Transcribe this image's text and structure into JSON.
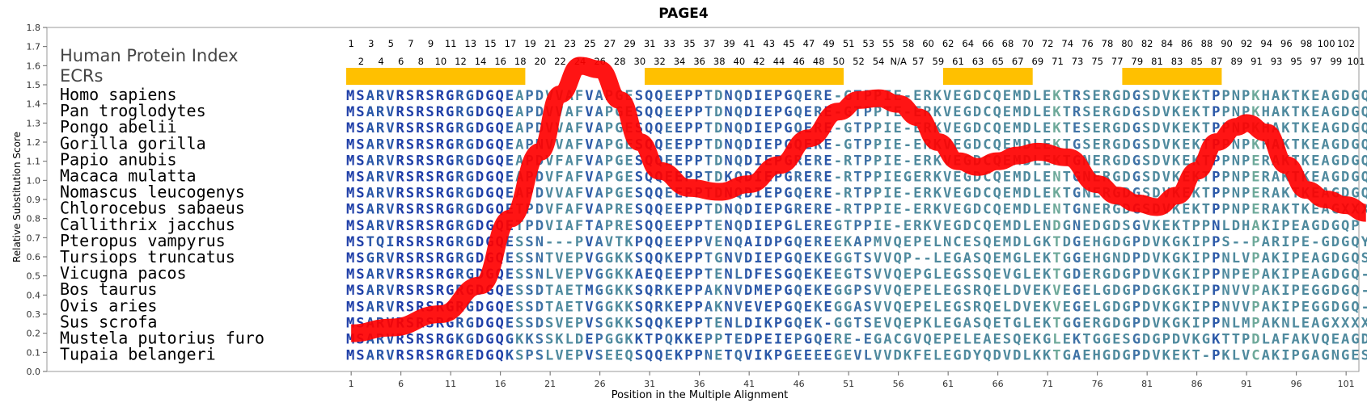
{
  "chart_data": {
    "type": "line",
    "title": "PAGE4",
    "xlabel": "Position in the Multiple Alignment",
    "ylabel": "Relative Substitution Score",
    "ylim": [
      0.0,
      1.8
    ],
    "yticks": [
      "0.0",
      "0.1",
      "0.2",
      "0.3",
      "0.4",
      "0.5",
      "0.6",
      "0.7",
      "0.8",
      "0.9",
      "1.0",
      "1.1",
      "1.2",
      "1.3",
      "1.4",
      "1.5",
      "1.6",
      "1.7",
      "1.8"
    ],
    "xrange": [
      1,
      104
    ],
    "xticks": [
      "1",
      "6",
      "11",
      "16",
      "21",
      "26",
      "31",
      "36",
      "41",
      "46",
      "51",
      "56",
      "61",
      "66",
      "71",
      "76",
      "81",
      "86",
      "91",
      "96",
      "101"
    ],
    "hpi_label": "Human Protein Index",
    "ecr_label": "ECRs",
    "hpi_top": [
      "1",
      "3",
      "5",
      "7",
      "9",
      "11",
      "13",
      "15",
      "17",
      "19",
      "21",
      "23",
      "25",
      "27",
      "29",
      "31",
      "33",
      "35",
      "37",
      "39",
      "41",
      "43",
      "45",
      "47",
      "49",
      "51",
      "53",
      "55",
      "58",
      "60",
      "62",
      "64",
      "66",
      "68",
      "70",
      "72",
      "74",
      "76",
      "78",
      "80",
      "82",
      "84",
      "86",
      "88",
      "90",
      "92",
      "94",
      "96",
      "98",
      "100",
      "102"
    ],
    "hpi_bottom": [
      "2",
      "4",
      "6",
      "8",
      "10",
      "12",
      "14",
      "16",
      "18",
      "20",
      "22",
      "24",
      "26",
      "28",
      "30",
      "32",
      "34",
      "36",
      "38",
      "40",
      "42",
      "44",
      "46",
      "48",
      "50",
      "52",
      "54",
      "N/A",
      "57",
      "59",
      "61",
      "63",
      "65",
      "67",
      "69",
      "71",
      "73",
      "75",
      "77",
      "79",
      "81",
      "83",
      "85",
      "87",
      "89",
      "91",
      "93",
      "95",
      "97",
      "99",
      "101"
    ],
    "ecr_ranges": [
      [
        1,
        18
      ],
      [
        31,
        50
      ],
      [
        61,
        69
      ],
      [
        79,
        88
      ]
    ],
    "series": [
      {
        "x": [
          1,
          5,
          10,
          14,
          17,
          20,
          22,
          24,
          26,
          28,
          30,
          32,
          35,
          38,
          41,
          44,
          47,
          50,
          52,
          54,
          56,
          58,
          60,
          62,
          64,
          66,
          68,
          70,
          73,
          76,
          78,
          80,
          82,
          84,
          86,
          88,
          90,
          91,
          93,
          95,
          97,
          99,
          101,
          103
        ],
        "y": [
          0.2,
          0.23,
          0.3,
          0.45,
          0.8,
          1.15,
          1.45,
          1.6,
          1.58,
          1.42,
          1.2,
          1.05,
          0.96,
          0.94,
          0.98,
          1.08,
          1.22,
          1.36,
          1.42,
          1.43,
          1.4,
          1.33,
          1.2,
          1.1,
          1.07,
          1.1,
          1.13,
          1.15,
          1.12,
          0.98,
          0.92,
          0.88,
          0.86,
          0.92,
          1.05,
          1.2,
          1.28,
          1.3,
          1.25,
          1.08,
          0.95,
          0.9,
          0.87,
          0.83
        ]
      }
    ],
    "line_color": "#ff0000",
    "ecr_color": "#ffc000"
  },
  "alignment": {
    "rows": [
      {
        "species": "Homo sapiens",
        "seq": "MSARVRSRSRGRGDGQEAPDVVAFVAPGESQQEEPPTDNQDIEPGQERE-GTPPIE-ERKVEGDCQEMDLEKTRSERGDGSDVKEKTPPNPKHAKTKEAGDGQP"
      },
      {
        "species": "Pan troglodytes",
        "seq": "MSARVRSRSRGRGDGQEAPDVVAFVAPGESQQEEPPTDNQDIEPGQERE-GTPPTE-ERKVEGDCQEMDLEKTRSERGDGSDVKEKTPPNPKHAKTKEAGDGQP"
      },
      {
        "species": "Pongo abelii",
        "seq": "MSARVRSRSRGRGDGQEAPDVVAFVAPGESQQEEPPTDNQDIEPGQERE-GTPPIE-ERKVEGDCQEMDLEKTESERGDGSDVKEKTPPNPKHAKTKEAGDGQP"
      },
      {
        "species": "Gorilla gorilla",
        "seq": "MSARVRSRSRGRGDGQEAPNVVAFVAPGESQQEEPPTDNQDIEPGQERE-GTPPIE-ERKVEGDCQEMDLEKTGSERGDGSDVKEKTPPNPKHAKTKEAGDGQP"
      },
      {
        "species": "Papio anubis",
        "seq": "MSARVRSRSRGRGDGQEAPDVFAFVAPGESQQEEPPTDNQDIEPGRERE-RTPPIE-ERKVEGDCQEMDLEKTGNERGDGSDVKEKTPPNPERAKTKEAGDGQP"
      },
      {
        "species": "Macaca mulatta",
        "seq": "MSARVRSRSRGRGDGQEAPDVFAFVAPGESQQEEPPTDKQDIEPGRERE-RTPPIEGERKVEGDCQEMDLENTGNERGDGSDVKEKTPPNPERAKTKEAGDGQP"
      },
      {
        "species": "Nomascus leucogenys",
        "seq": "MSARVRSRSRGRGDGQEAPDVVAFVAPGESQQEEPPTDNQDIEPGQERE-RTPPIE-ERKVEGDCQEMDLEKTGNERGDGSDVKEKTPPNPERAKTKEAGDGQP"
      },
      {
        "species": "Chlorocebus sabaeus",
        "seq": "MSARVRSRSRGRGDGQETPDVFAFVAPRESQQEEPPTDNQDIEPGRERE-RTPPIE-ERKVEGDCQEMDLENTGNERGDGSDVKEKTPPNPERAKTKEAGXXXX"
      },
      {
        "species": "Callithrix jacchus",
        "seq": "MSARVRSRSRGRGDGQETPDVIAFTAPRESQQEEPPTENQDIEPGLEREGTPPIE-ERKVEGDCQEMDLENDGNEDGDSGVKEKTPPNLDHAKIPEAGDGQP"
      },
      {
        "species": "Pteropus vampyrus",
        "seq": "MSTQIRSRSRGRGDGQESSN---PVAVTKPQQEEPPVENQAIDPGQEREEKAPMVQEPELNCESQEMDLGKTDGEHGDGPDVKGKIPPS--PARIPE-GDGQY"
      },
      {
        "species": "Tursiops truncatus",
        "seq": "MSGRVRSRSRGRGDGQESSNTVEPVGGKKSQQKEPPTGNVDIEPGQEKEGGTSVVQP--LEGASQEMGLEKTGGEHGNDPDVKGKIPPNLVPAKIPEAGDGQS"
      },
      {
        "species": "Vicugna pacos",
        "seq": "MSARVRSRSRGRGDGQESSNLVEPVGGKKAEQEEPPTENLDFESGQEKEEGTSVVQEPGLEGSSQEVGLEKTGDERGDGPDVKGKIPPNPEPAKIPEAGDGQ-"
      },
      {
        "species": "Bos taurus",
        "seq": "MSARVRSRSRGRGDGQESSDTAETMGGKKSQRKEPPAKNVDMEPGQEKEGGPSVVQEPELEGSRQELDVEKVEGELGDGPDGKGKIPPNVVPAKIPEGGDGQ-"
      },
      {
        "species": "Ovis aries",
        "seq": "MSARVRSRSRGRGDGQESSDTAETVGGKKSQRKEPPAKNVEVEPGQEKEGGASVVQEPELEGSRQELDVEKVEGELGDGPDVKGKIPPNVVPAKIPEGGDGQ-"
      },
      {
        "species": "Sus scrofa",
        "seq": "MSARVRSRSRGRGDGQESSDSVEPVSGKKSQQKEPPTENLDIKPGQEK-GGTSEVQEPKLEGASQETGLEKTGGERGDGPDVKGKIPPNLMPAKNLEAGXXXX"
      },
      {
        "species": "Mustela putorius furo",
        "seq": "MSARVRSRSRGKGDGQGKKSSKLDEPGGKKTPQKKEPPTEDPEIEPGQERE-EGACGVQEPELEAESQEKGLEKTGGESGDGPDVKGKTTPDLAFAKVQEAGDGQS"
      },
      {
        "species": "Tupaia belangeri",
        "seq": "MSARVRSRSRGREDGQKSPSLVEPVSEEQSQQEKPPNETQVIKPGEEEEGEVLVVDKFELEGDYQDVDLKKTGAEHGDGPDVKEKT-PKLVCAKIPGAGNGES"
      }
    ]
  }
}
